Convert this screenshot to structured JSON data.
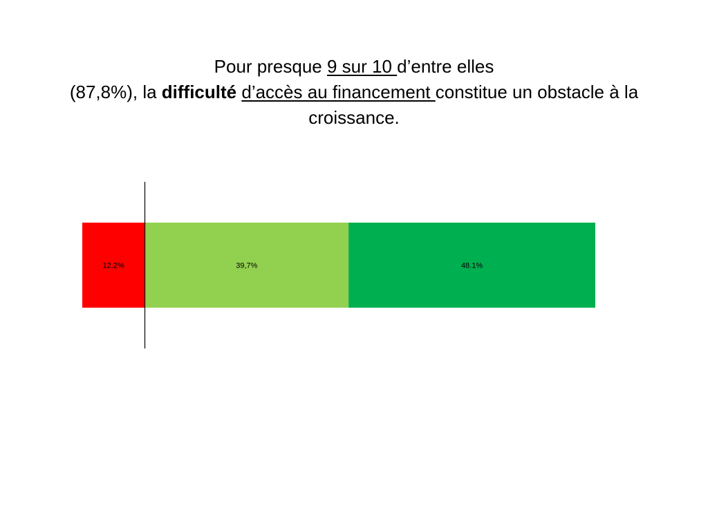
{
  "title": {
    "line1_a": "Pour presque ",
    "line1_u": "9 sur 10 ",
    "line1_b": "d’entre elles",
    "line2_a": "(87,8%), la ",
    "line2_bold": "difficulté",
    "line2_sp": " ",
    "line2_u": "d’accès au financement ",
    "line2_b": "constitue un obstacle à la",
    "line3": "croissance."
  },
  "chart_data": {
    "type": "bar",
    "orientation": "horizontal-stacked",
    "series": [
      {
        "label": "12.2%",
        "value": 12.2,
        "color": "#ff0000"
      },
      {
        "label": "39,7%",
        "value": 39.7,
        "color": "#92d050"
      },
      {
        "label": "48.1%",
        "value": 48.1,
        "color": "#00b050"
      }
    ],
    "total": 100,
    "divider_after_segment": 1
  }
}
